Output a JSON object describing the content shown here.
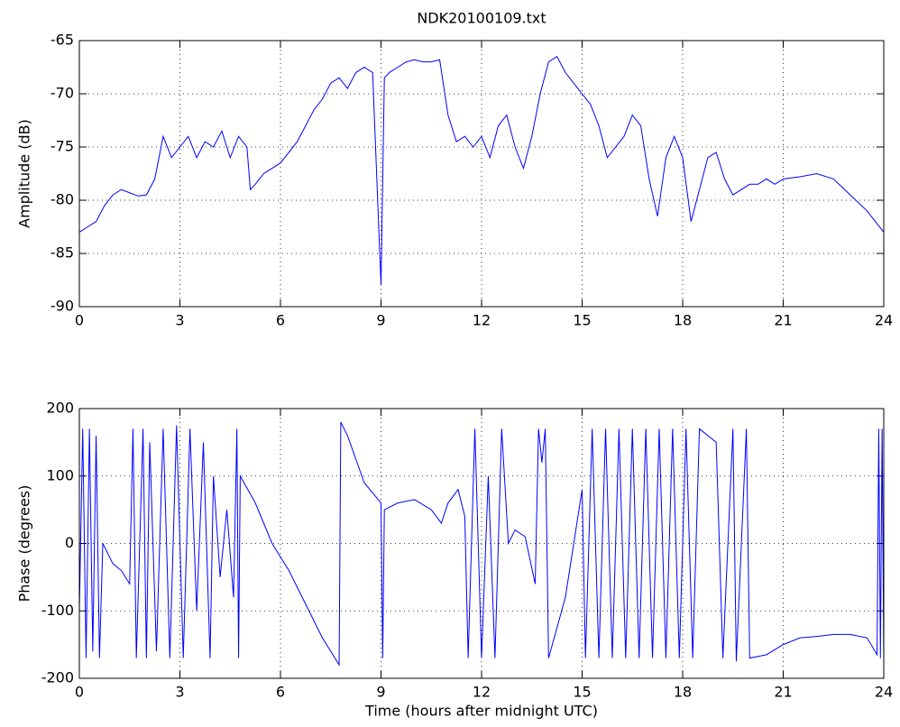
{
  "chart_data": [
    {
      "type": "line",
      "title": "NDK20100109.txt",
      "ylabel": "Amplitude (dB)",
      "x": [
        0,
        0.25,
        0.5,
        0.75,
        1,
        1.25,
        1.5,
        1.75,
        2,
        2.25,
        2.5,
        2.75,
        3,
        3.25,
        3.5,
        3.75,
        4,
        4.25,
        4.5,
        4.75,
        5,
        5.1,
        5.25,
        5.5,
        5.75,
        6,
        6.25,
        6.5,
        6.75,
        7,
        7.25,
        7.5,
        7.75,
        8,
        8.25,
        8.5,
        8.75,
        9,
        9.1,
        9.25,
        9.5,
        9.75,
        10,
        10.25,
        10.5,
        10.75,
        11,
        11.25,
        11.5,
        11.75,
        12,
        12.25,
        12.5,
        12.75,
        13,
        13.25,
        13.5,
        13.75,
        14,
        14.25,
        14.5,
        14.75,
        15,
        15.25,
        15.5,
        15.75,
        16,
        16.25,
        16.5,
        16.75,
        17,
        17.25,
        17.5,
        17.75,
        18,
        18.25,
        18.5,
        18.75,
        19,
        19.25,
        19.5,
        19.75,
        20,
        20.25,
        20.5,
        20.75,
        21,
        21.5,
        22,
        22.5,
        23,
        23.5,
        24
      ],
      "series": [
        {
          "color": "#0000ff",
          "values": [
            -83,
            -82.5,
            -82,
            -80.5,
            -79.5,
            -79,
            -79.3,
            -79.6,
            -79.5,
            -78,
            -74,
            -76,
            -75,
            -74,
            -76,
            -74.5,
            -75,
            -73.5,
            -76,
            -74,
            -75,
            -79,
            -78.5,
            -77.5,
            -77,
            -76.5,
            -75.5,
            -74.5,
            -73,
            -71.5,
            -70.5,
            -69,
            -68.5,
            -69.5,
            -68,
            -67.5,
            -68,
            -88,
            -68.5,
            -68,
            -67.5,
            -67,
            -66.8,
            -67,
            -67,
            -66.8,
            -72,
            -74.5,
            -74,
            -75,
            -74,
            -76,
            -73,
            -72,
            -75,
            -77,
            -74,
            -70,
            -67,
            -66.5,
            -68,
            -69,
            -70,
            -71,
            -73,
            -76,
            -75,
            -74,
            -72,
            -73,
            -78,
            -81.5,
            -76,
            -74,
            -76,
            -82,
            -79,
            -76,
            -75.5,
            -78,
            -79.5,
            -79,
            -78.5,
            -78.5,
            -78,
            -78.5,
            -78,
            -77.8,
            -77.5,
            -78,
            -79.5,
            -81,
            -83
          ]
        }
      ],
      "xlim": [
        0,
        24
      ],
      "ylim": [
        -90,
        -65
      ],
      "xticks": [
        0,
        3,
        6,
        9,
        12,
        15,
        18,
        21,
        24
      ],
      "yticks": [
        -90,
        -85,
        -80,
        -75,
        -70,
        -65
      ],
      "grid": true
    },
    {
      "type": "line",
      "ylabel": "Phase (degrees)",
      "xlabel": "Time (hours after midnight UTC)",
      "x": [
        0,
        0.1,
        0.2,
        0.3,
        0.4,
        0.5,
        0.6,
        0.7,
        1,
        1.25,
        1.5,
        1.6,
        1.7,
        1.9,
        2,
        2.1,
        2.3,
        2.5,
        2.7,
        2.9,
        3.1,
        3.3,
        3.5,
        3.7,
        3.9,
        4,
        4.2,
        4.4,
        4.6,
        4.7,
        4.75,
        4.8,
        5.25,
        5.75,
        6.25,
        6.75,
        7.25,
        7.75,
        7.8,
        8,
        8.5,
        9,
        9.05,
        9.1,
        9.5,
        10,
        10.5,
        10.8,
        11,
        11.3,
        11.5,
        11.6,
        11.8,
        12,
        12.2,
        12.4,
        12.6,
        12.8,
        13,
        13.3,
        13.6,
        13.7,
        13.8,
        13.9,
        14,
        14.5,
        15,
        15.1,
        15.3,
        15.5,
        15.7,
        15.9,
        16.1,
        16.3,
        16.5,
        16.7,
        16.9,
        17.1,
        17.3,
        17.5,
        17.7,
        17.9,
        18.1,
        18.3,
        18.5,
        19,
        19.2,
        19.5,
        19.6,
        19.9,
        20,
        20.5,
        21,
        21.5,
        22,
        22.5,
        23,
        23.5,
        23.8,
        23.85,
        23.9,
        23.95,
        24
      ],
      "series": [
        {
          "color": "#0000ff",
          "values": [
            -100,
            170,
            -170,
            170,
            -160,
            160,
            -170,
            0,
            -30,
            -40,
            -60,
            170,
            -170,
            170,
            -170,
            150,
            -160,
            170,
            -170,
            175,
            -170,
            170,
            -100,
            150,
            -170,
            100,
            -50,
            50,
            -80,
            170,
            -170,
            100,
            60,
            0,
            -40,
            -90,
            -140,
            -180,
            180,
            160,
            90,
            60,
            -170,
            50,
            60,
            65,
            50,
            30,
            60,
            80,
            40,
            -170,
            170,
            -170,
            100,
            -170,
            170,
            0,
            20,
            10,
            -60,
            170,
            120,
            170,
            -170,
            -80,
            80,
            -170,
            170,
            -170,
            170,
            -170,
            170,
            -170,
            170,
            -170,
            170,
            -170,
            170,
            -170,
            170,
            -170,
            170,
            -170,
            170,
            150,
            -170,
            170,
            -175,
            170,
            -170,
            -165,
            -150,
            -140,
            -138,
            -135,
            -135,
            -140,
            -165,
            170,
            -170,
            170,
            -170
          ]
        }
      ],
      "xlim": [
        0,
        24
      ],
      "ylim": [
        -200,
        200
      ],
      "xticks": [
        0,
        3,
        6,
        9,
        12,
        15,
        18,
        21,
        24
      ],
      "yticks": [
        -200,
        -100,
        0,
        100,
        200
      ],
      "grid": true
    }
  ]
}
